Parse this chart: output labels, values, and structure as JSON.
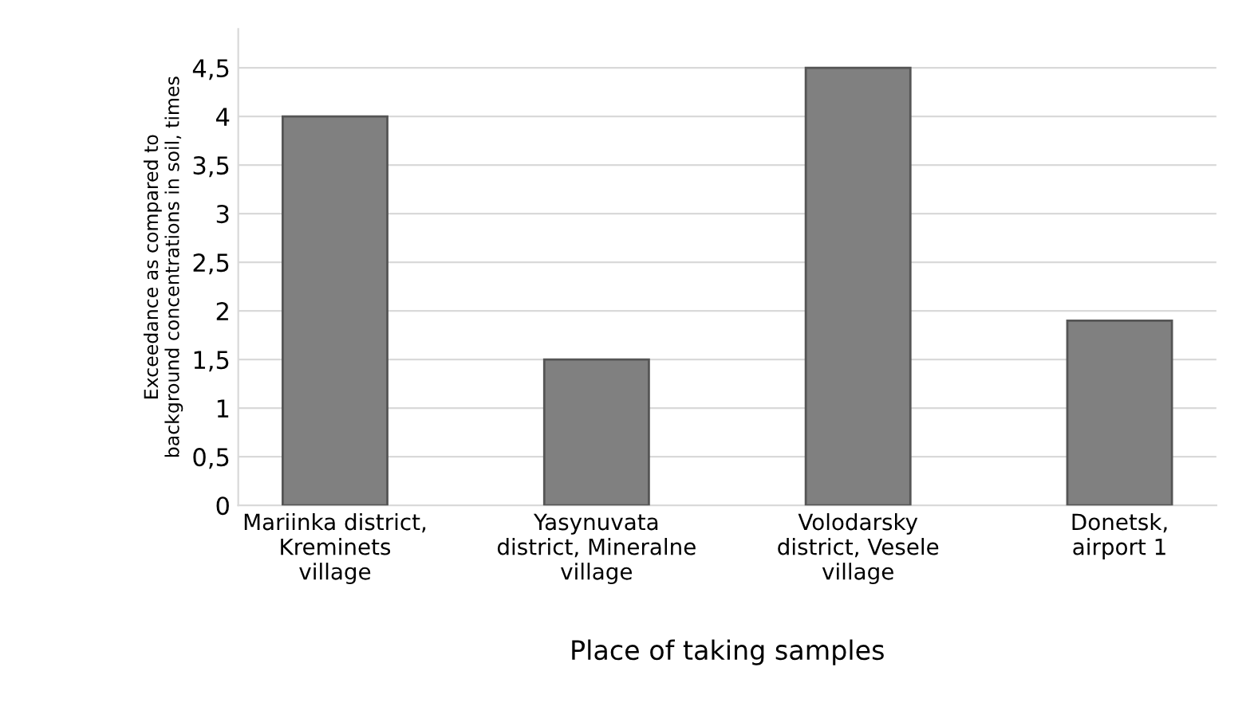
{
  "chart_data": {
    "type": "bar",
    "xlabel": "Place of taking samples",
    "ylabel": "Exceedance as compared to\nbackground concentrations in soil, times",
    "categories": [
      "Mariinka district,\nKreminets\nvillage",
      "Yasynuvata\ndistrict, Mineralne\nvillage",
      "Volodarsky\ndistrict, Vesele\nvillage",
      "Donetsk,\nairport 1"
    ],
    "values": [
      4,
      1.5,
      4.5,
      1.9
    ],
    "color": "#808080",
    "ylim": [
      0,
      4.9
    ],
    "yticks": [
      {
        "value": 0,
        "label": "0"
      },
      {
        "value": 0.5,
        "label": "0,5"
      },
      {
        "value": 1,
        "label": "1"
      },
      {
        "value": 1.5,
        "label": "1,5"
      },
      {
        "value": 2,
        "label": "2"
      },
      {
        "value": 2.5,
        "label": "2,5"
      },
      {
        "value": 3,
        "label": "3"
      },
      {
        "value": 3.5,
        "label": "3,5"
      },
      {
        "value": 4,
        "label": "4"
      },
      {
        "value": 4.5,
        "label": "4,5"
      }
    ],
    "grid": "y",
    "legend": false
  }
}
